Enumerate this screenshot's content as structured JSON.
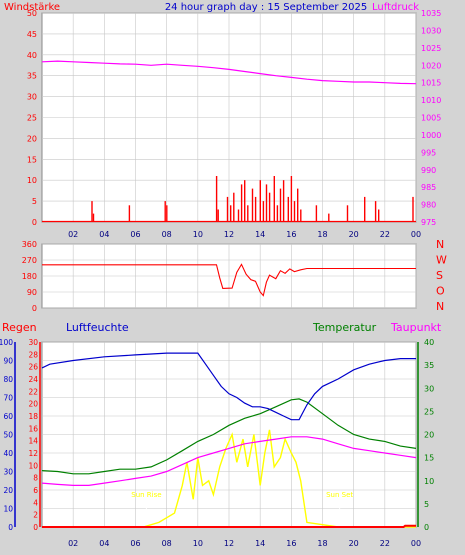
{
  "header": {
    "title": "24 hour graph day : 15 September 2025",
    "left_label": "Windstärke",
    "right_label": "Luftdruck"
  },
  "bottom_labels": {
    "rain": "Regen",
    "humidity": "Luftfeuchte",
    "temperature": "Temperatur",
    "dewpoint": "Taupunkt"
  },
  "colors": {
    "background": "#d4d4d4",
    "plot_background": "#ffffff",
    "grid": "#c8c8c8",
    "wind": "#ff0000",
    "pressure": "#ff00ff",
    "humidity": "#0000cc",
    "temperature": "#008000",
    "dewpoint": "#ff00ff",
    "solar": "#ffff00",
    "rain": "#ff0000"
  },
  "chart_data": [
    {
      "type": "bar",
      "title": "24 hour graph day : 15 September 2025",
      "x_ticks": [
        "02",
        "04",
        "06",
        "08",
        "10",
        "12",
        "14",
        "16",
        "18",
        "20",
        "22",
        "00"
      ],
      "left_axis": {
        "label": "Windstärke",
        "range": [
          0,
          50
        ],
        "ticks": [
          0,
          5,
          10,
          15,
          20,
          25,
          30,
          35,
          40,
          45,
          50
        ]
      },
      "right_axis": {
        "label": "Luftdruck",
        "range": [
          975,
          1035
        ],
        "ticks": [
          975,
          980,
          985,
          990,
          995,
          1000,
          1005,
          1010,
          1015,
          1020,
          1025,
          1030,
          1035
        ]
      },
      "series": [
        {
          "name": "Luftdruck",
          "type": "line",
          "axis": "right",
          "x": [
            0,
            1,
            2,
            3,
            4,
            5,
            6,
            7,
            8,
            9,
            10,
            11,
            12,
            13,
            14,
            15,
            16,
            17,
            18,
            19,
            20,
            21,
            22,
            23,
            24
          ],
          "values": [
            1021.0,
            1021.2,
            1021.0,
            1020.8,
            1020.6,
            1020.4,
            1020.3,
            1020.0,
            1020.3,
            1020.0,
            1019.7,
            1019.3,
            1018.8,
            1018.2,
            1017.6,
            1017.0,
            1016.5,
            1016.0,
            1015.6,
            1015.4,
            1015.2,
            1015.2,
            1015.0,
            1014.8,
            1014.7
          ]
        },
        {
          "name": "Windstärke",
          "type": "bar",
          "axis": "left",
          "x": [
            3.2,
            3.3,
            5.6,
            7.9,
            8.0,
            11.2,
            11.3,
            11.9,
            12.1,
            12.3,
            12.6,
            12.8,
            13.0,
            13.2,
            13.5,
            13.7,
            14.0,
            14.2,
            14.4,
            14.6,
            14.9,
            15.1,
            15.3,
            15.5,
            15.8,
            16.0,
            16.2,
            16.4,
            16.6,
            17.6,
            18.4,
            19.6,
            20.7,
            21.4,
            21.6,
            23.8
          ],
          "values": [
            5,
            2,
            4,
            5,
            4,
            11,
            3,
            6,
            4,
            7,
            3,
            9,
            10,
            4,
            8,
            6,
            10,
            5,
            9,
            7,
            11,
            4,
            8,
            10,
            6,
            11,
            5,
            8,
            3,
            4,
            2,
            4,
            6,
            5,
            3,
            6
          ]
        }
      ]
    },
    {
      "type": "line",
      "title": "",
      "left_axis": {
        "range": [
          0,
          360
        ],
        "ticks": [
          0,
          90,
          180,
          270,
          360
        ]
      },
      "right_labels": [
        "N",
        "W",
        "S",
        "O",
        "N"
      ],
      "series": [
        {
          "name": "",
          "x": [
            0,
            11.2,
            11.4,
            11.6,
            12.2,
            12.5,
            12.8,
            13.1,
            13.4,
            13.7,
            14.0,
            14.2,
            14.4,
            14.6,
            15.0,
            15.3,
            15.6,
            15.9,
            16.2,
            16.6,
            17.0,
            24
          ],
          "values": [
            243,
            243,
            170,
            110,
            112,
            200,
            245,
            190,
            160,
            150,
            90,
            70,
            145,
            185,
            165,
            210,
            195,
            220,
            205,
            215,
            222,
            222
          ]
        }
      ]
    },
    {
      "type": "line",
      "title": "",
      "x_ticks": [
        "02",
        "04",
        "06",
        "08",
        "10",
        "12",
        "14",
        "16",
        "18",
        "20",
        "22",
        "00"
      ],
      "axes": {
        "humidity": {
          "label": "Luftfeuchte",
          "range": [
            0,
            100
          ],
          "ticks": [
            0,
            10,
            20,
            30,
            40,
            50,
            60,
            70,
            80,
            90,
            100
          ]
        },
        "rain": {
          "label": "Regen",
          "range": [
            0,
            30
          ],
          "ticks": [
            0,
            2,
            4,
            6,
            8,
            10,
            12,
            14,
            16,
            18,
            20,
            22,
            24,
            26,
            28,
            30
          ]
        },
        "temperature": {
          "label": "Temperatur",
          "range": [
            0,
            40
          ],
          "ticks": [
            0,
            5,
            10,
            15,
            20,
            25,
            30,
            35,
            40
          ]
        }
      },
      "annotations": [
        {
          "text": "Sun Rise",
          "x": 6.7
        },
        {
          "text": "Sun Set",
          "x": 19.1
        }
      ],
      "series": [
        {
          "name": "Luftfeuchte",
          "axis": "humidity",
          "x": [
            0,
            0.5,
            2,
            4,
            6,
            8,
            9,
            10,
            10.5,
            11,
            11.5,
            12,
            12.5,
            13,
            13.5,
            14,
            14.5,
            15,
            15.5,
            16,
            16.5,
            17,
            17.5,
            18,
            19,
            20,
            21,
            22,
            23,
            24
          ],
          "values": [
            86,
            88,
            90,
            92,
            93,
            94,
            94,
            94,
            88,
            82,
            76,
            72,
            70,
            67,
            65,
            65,
            64,
            62,
            60,
            58,
            58,
            66,
            72,
            76,
            80,
            85,
            88,
            90,
            91,
            91
          ]
        },
        {
          "name": "Temperatur",
          "axis": "temperature",
          "x": [
            0,
            1,
            2,
            3,
            4,
            5,
            6,
            7,
            8,
            9,
            10,
            11,
            12,
            13,
            14,
            15,
            16,
            16.5,
            17,
            18,
            19,
            20,
            21,
            22,
            23,
            24
          ],
          "values": [
            12.2,
            12.0,
            11.5,
            11.5,
            12.0,
            12.5,
            12.5,
            13.0,
            14.5,
            16.5,
            18.5,
            20.0,
            22.0,
            23.5,
            24.5,
            26.0,
            27.5,
            27.7,
            27.0,
            24.5,
            22.0,
            20.0,
            19.0,
            18.5,
            17.5,
            17.0
          ]
        },
        {
          "name": "Taupunkt",
          "axis": "temperature",
          "x": [
            0,
            1,
            2,
            3,
            4,
            5,
            6,
            7,
            8,
            9,
            10,
            11,
            12,
            13,
            14,
            15,
            16,
            17,
            18,
            19,
            20,
            21,
            22,
            23,
            24
          ],
          "values": [
            9.5,
            9.2,
            9.0,
            9.0,
            9.5,
            10.0,
            10.5,
            11.0,
            12.0,
            13.5,
            15.0,
            16.0,
            17.0,
            18.0,
            18.5,
            19.0,
            19.5,
            19.5,
            19.0,
            18.0,
            17.0,
            16.5,
            16.0,
            15.5,
            15.0
          ]
        },
        {
          "name": "Solar",
          "axis": "temperature",
          "x": [
            0,
            6.5,
            7.5,
            8.5,
            9.0,
            9.3,
            9.7,
            10.0,
            10.3,
            10.7,
            11.0,
            11.4,
            11.8,
            12.2,
            12.5,
            12.9,
            13.2,
            13.6,
            14.0,
            14.3,
            14.6,
            14.9,
            15.3,
            15.6,
            16.0,
            16.3,
            16.6,
            17.0,
            18.0,
            19.0,
            24
          ],
          "values": [
            0,
            0,
            1,
            3,
            9,
            14,
            6,
            15,
            9,
            10,
            7,
            13,
            17,
            20,
            14,
            19,
            13,
            20,
            9,
            16,
            21,
            13,
            15,
            19,
            16,
            14,
            10,
            1,
            0.5,
            0,
            0
          ]
        },
        {
          "name": "Regen",
          "axis": "rain",
          "x": [
            0,
            23.2,
            23.3,
            24
          ],
          "values": [
            0,
            0,
            0.2,
            0.2
          ]
        }
      ]
    }
  ]
}
